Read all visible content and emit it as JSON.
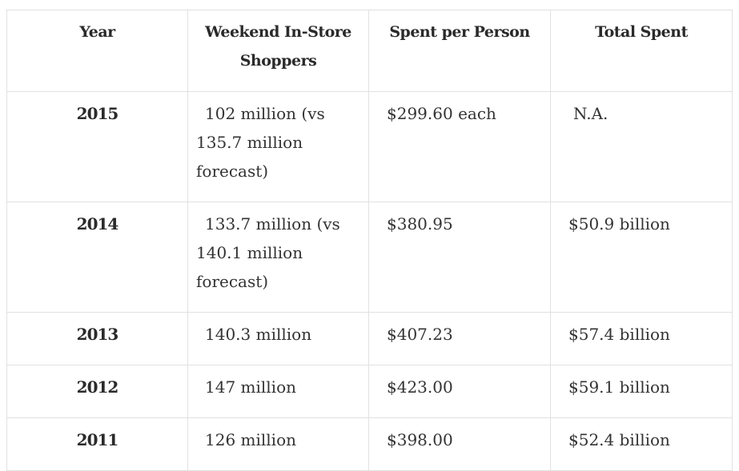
{
  "table": {
    "headers": {
      "year": "Year",
      "shoppers_line1": "Weekend In-Store",
      "shoppers_line2": "Shoppers",
      "spent_per_person": "Spent per Person",
      "total_spent": "Total Spent"
    },
    "rows": [
      {
        "year": "2015",
        "shoppers_line1": "102 million (vs",
        "shoppers_line2": "135.7 million",
        "shoppers_line3": "forecast)",
        "spent_per_person": "$299.60 each",
        "total_spent": "N.A."
      },
      {
        "year": "2014",
        "shoppers_line1": "133.7 million (vs",
        "shoppers_line2": "140.1 million",
        "shoppers_line3": "forecast)",
        "spent_per_person": "$380.95",
        "total_spent": "$50.9 billion"
      },
      {
        "year": "2013",
        "shoppers": "140.3 million",
        "spent_per_person": "$407.23",
        "total_spent": "$57.4 billion"
      },
      {
        "year": "2012",
        "shoppers": "147 million",
        "spent_per_person": "$423.00",
        "total_spent": "$59.1 billion"
      },
      {
        "year": "2011",
        "shoppers": "126 million",
        "spent_per_person": "$398.00",
        "total_spent": "$52.4 billion"
      }
    ]
  }
}
